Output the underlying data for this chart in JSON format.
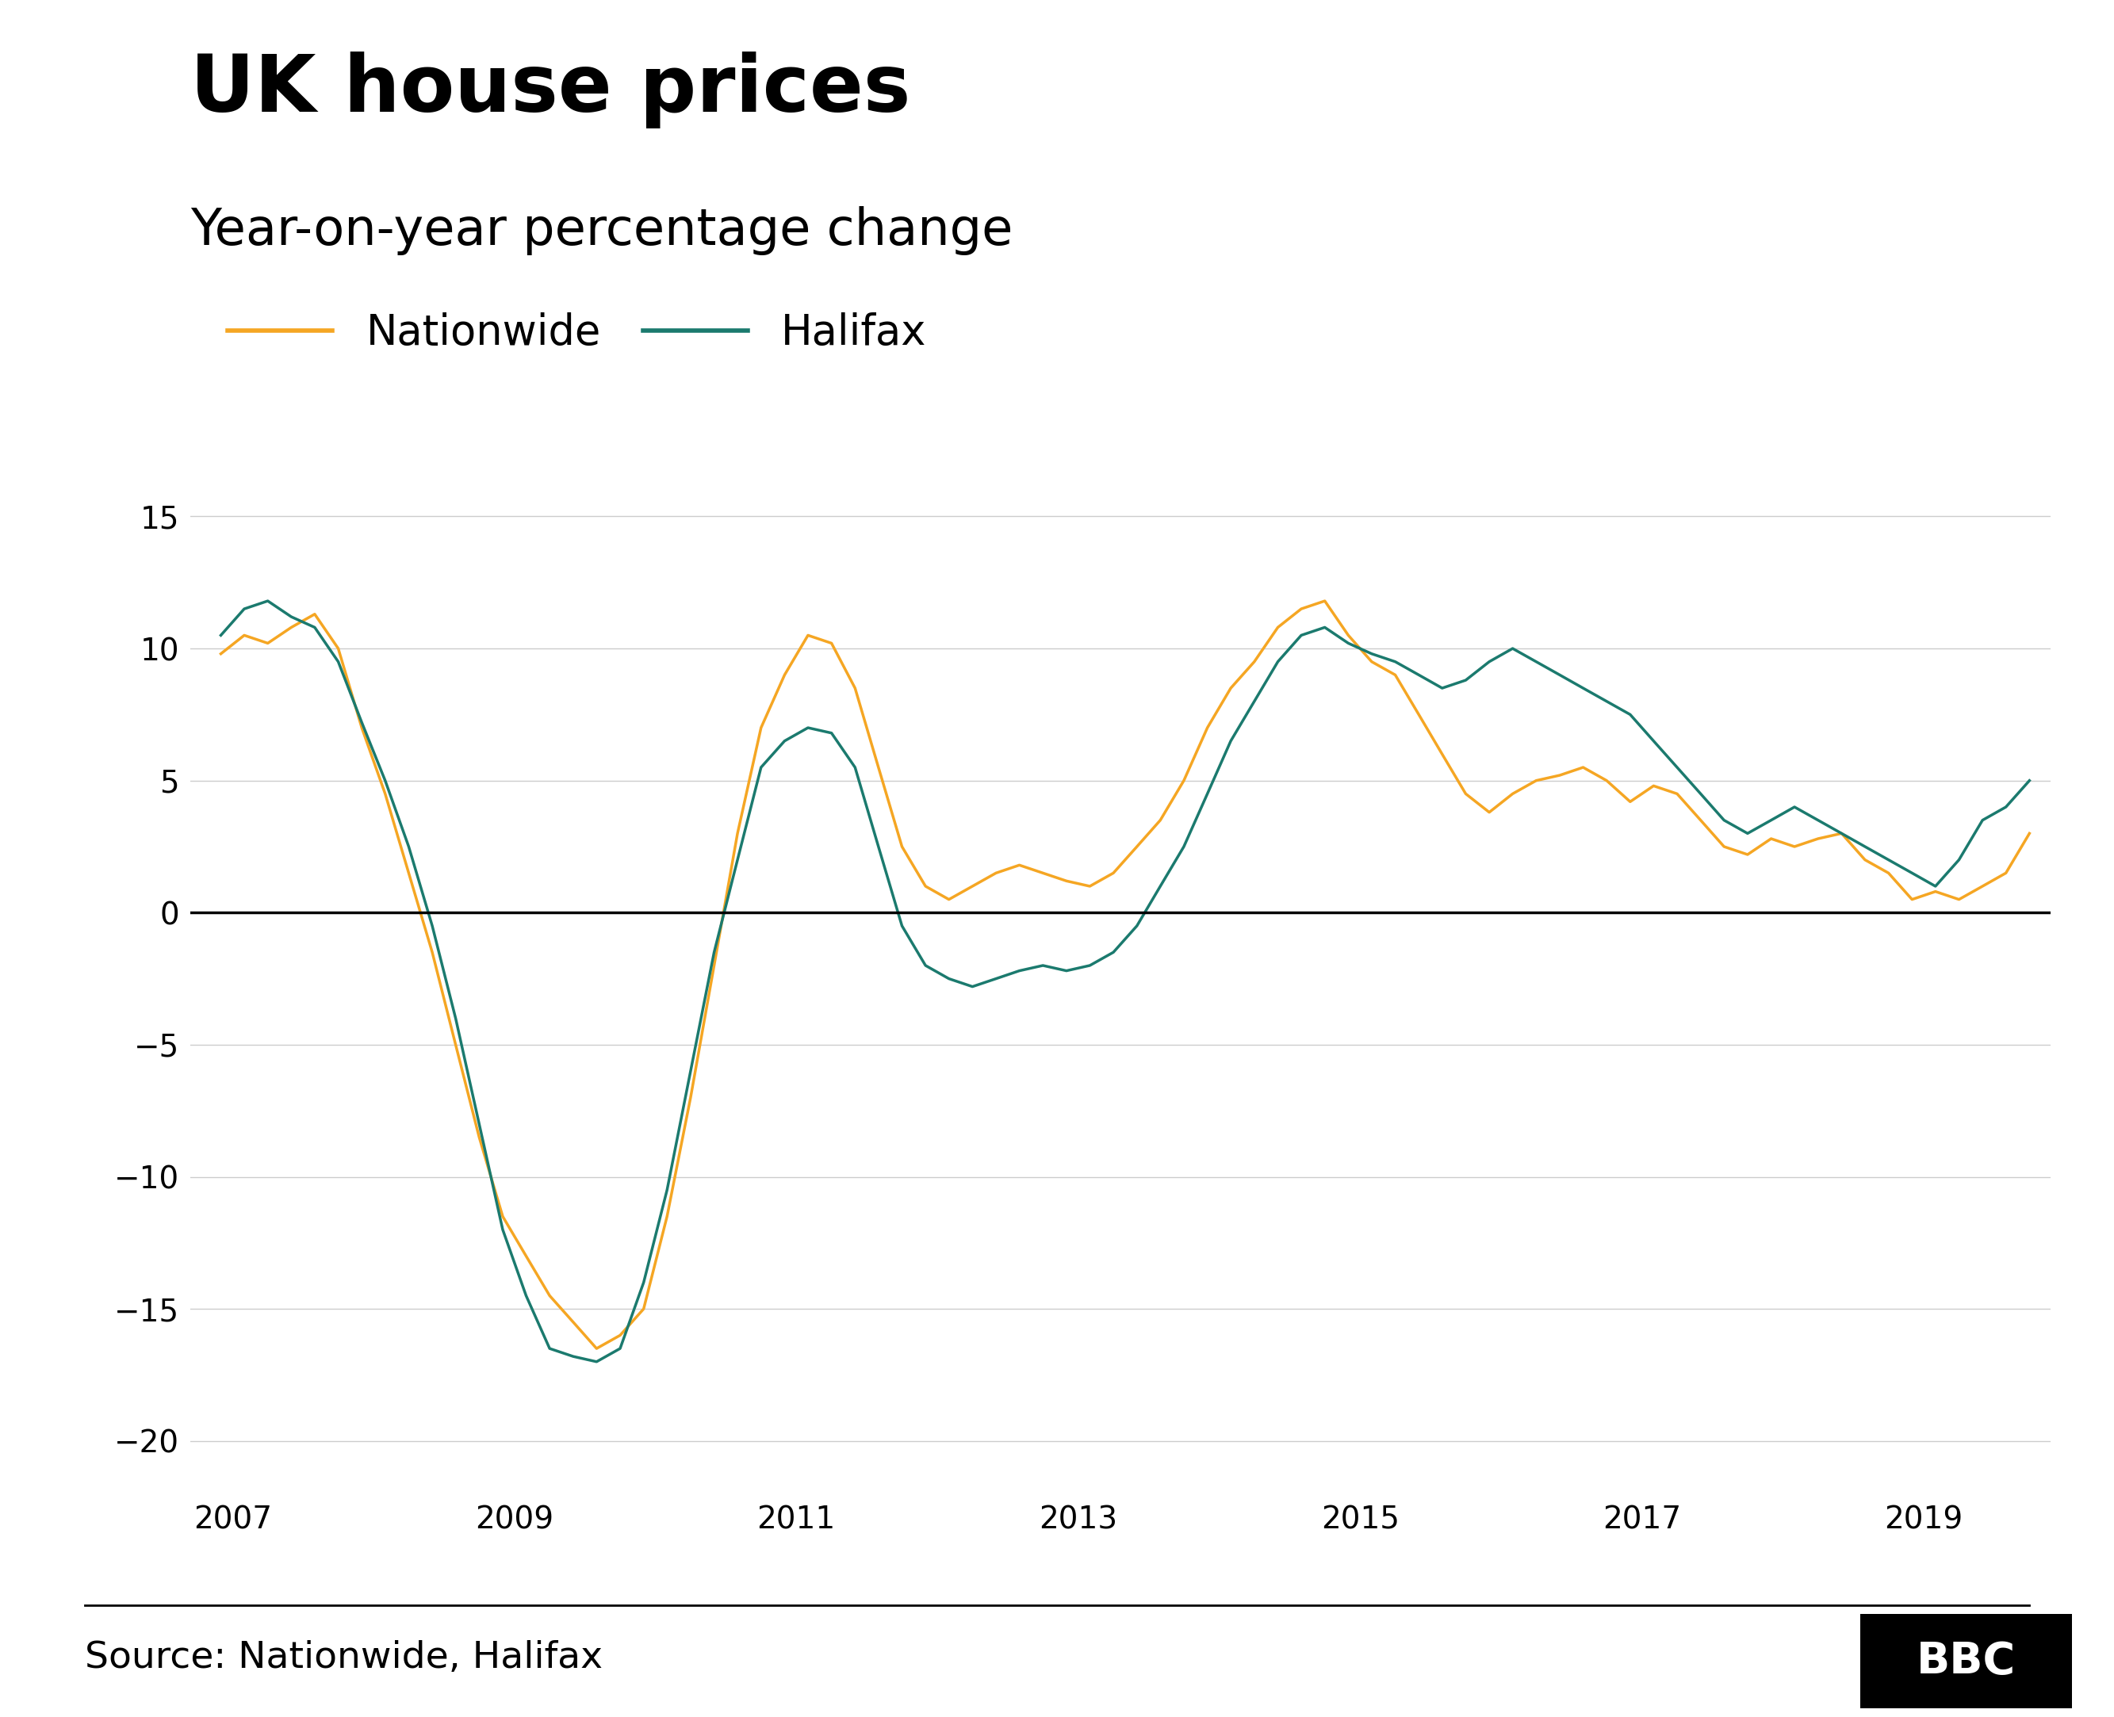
{
  "title": "UK house prices",
  "subtitle": "Year-on-year percentage change",
  "source": "Source: Nationwide, Halifax",
  "nationwide_color": "#F5A623",
  "halifax_color": "#1B7A6E",
  "background_color": "#FFFFFF",
  "ylim": [
    -22,
    17
  ],
  "yticks": [
    -20,
    -15,
    -10,
    -5,
    0,
    5,
    10,
    15
  ],
  "xticks": [
    2007,
    2009,
    2011,
    2013,
    2015,
    2017,
    2019
  ],
  "nationwide_x": [
    2006.917,
    2007.083,
    2007.25,
    2007.417,
    2007.583,
    2007.75,
    2007.917,
    2008.083,
    2008.25,
    2008.417,
    2008.583,
    2008.75,
    2008.917,
    2009.083,
    2009.25,
    2009.417,
    2009.583,
    2009.75,
    2009.917,
    2010.083,
    2010.25,
    2010.417,
    2010.583,
    2010.75,
    2010.917,
    2011.083,
    2011.25,
    2011.417,
    2011.583,
    2011.75,
    2011.917,
    2012.083,
    2012.25,
    2012.417,
    2012.583,
    2012.75,
    2012.917,
    2013.083,
    2013.25,
    2013.417,
    2013.583,
    2013.75,
    2013.917,
    2014.083,
    2014.25,
    2014.417,
    2014.583,
    2014.75,
    2014.917,
    2015.083,
    2015.25,
    2015.417,
    2015.583,
    2015.75,
    2015.917,
    2016.083,
    2016.25,
    2016.417,
    2016.583,
    2016.75,
    2016.917,
    2017.083,
    2017.25,
    2017.417,
    2017.583,
    2017.75,
    2017.917,
    2018.083,
    2018.25,
    2018.417,
    2018.583,
    2018.75,
    2018.917,
    2019.083,
    2019.25,
    2019.417,
    2019.583,
    2019.75
  ],
  "nationwide_y": [
    9.8,
    10.5,
    10.2,
    10.8,
    11.3,
    10.0,
    7.0,
    4.5,
    1.5,
    -1.5,
    -5.0,
    -8.5,
    -11.5,
    -13.0,
    -14.5,
    -15.5,
    -16.5,
    -16.0,
    -15.0,
    -11.5,
    -7.0,
    -2.0,
    3.0,
    7.0,
    9.0,
    10.5,
    10.2,
    8.5,
    5.5,
    2.5,
    1.0,
    0.5,
    1.0,
    1.5,
    1.8,
    1.5,
    1.2,
    1.0,
    1.5,
    2.5,
    3.5,
    5.0,
    7.0,
    8.5,
    9.5,
    10.8,
    11.5,
    11.8,
    10.5,
    9.5,
    9.0,
    7.5,
    6.0,
    4.5,
    3.8,
    4.5,
    5.0,
    5.2,
    5.5,
    5.0,
    4.2,
    4.8,
    4.5,
    3.5,
    2.5,
    2.2,
    2.8,
    2.5,
    2.8,
    3.0,
    2.0,
    1.5,
    0.5,
    0.8,
    0.5,
    1.0,
    1.5,
    3.0
  ],
  "halifax_x": [
    2006.917,
    2007.083,
    2007.25,
    2007.417,
    2007.583,
    2007.75,
    2007.917,
    2008.083,
    2008.25,
    2008.417,
    2008.583,
    2008.75,
    2008.917,
    2009.083,
    2009.25,
    2009.417,
    2009.583,
    2009.75,
    2009.917,
    2010.083,
    2010.25,
    2010.417,
    2010.583,
    2010.75,
    2010.917,
    2011.083,
    2011.25,
    2011.417,
    2011.583,
    2011.75,
    2011.917,
    2012.083,
    2012.25,
    2012.417,
    2012.583,
    2012.75,
    2012.917,
    2013.083,
    2013.25,
    2013.417,
    2013.583,
    2013.75,
    2013.917,
    2014.083,
    2014.25,
    2014.417,
    2014.583,
    2014.75,
    2014.917,
    2015.083,
    2015.25,
    2015.417,
    2015.583,
    2015.75,
    2015.917,
    2016.083,
    2016.25,
    2016.417,
    2016.583,
    2016.75,
    2016.917,
    2017.083,
    2017.25,
    2017.417,
    2017.583,
    2017.75,
    2017.917,
    2018.083,
    2018.25,
    2018.417,
    2018.583,
    2018.75,
    2018.917,
    2019.083,
    2019.25,
    2019.417,
    2019.583,
    2019.75
  ],
  "halifax_y": [
    10.5,
    11.5,
    11.8,
    11.2,
    10.8,
    9.5,
    7.2,
    5.0,
    2.5,
    -0.5,
    -4.0,
    -8.0,
    -12.0,
    -14.5,
    -16.5,
    -16.8,
    -17.0,
    -16.5,
    -14.0,
    -10.5,
    -6.0,
    -1.5,
    2.0,
    5.5,
    6.5,
    7.0,
    6.8,
    5.5,
    2.5,
    -0.5,
    -2.0,
    -2.5,
    -2.8,
    -2.5,
    -2.2,
    -2.0,
    -2.2,
    -2.0,
    -1.5,
    -0.5,
    1.0,
    2.5,
    4.5,
    6.5,
    8.0,
    9.5,
    10.5,
    10.8,
    10.2,
    9.8,
    9.5,
    9.0,
    8.5,
    8.8,
    9.5,
    10.0,
    9.5,
    9.0,
    8.5,
    8.0,
    7.5,
    6.5,
    5.5,
    4.5,
    3.5,
    3.0,
    3.5,
    4.0,
    3.5,
    3.0,
    2.5,
    2.0,
    1.5,
    1.0,
    2.0,
    3.5,
    4.0,
    5.0
  ]
}
